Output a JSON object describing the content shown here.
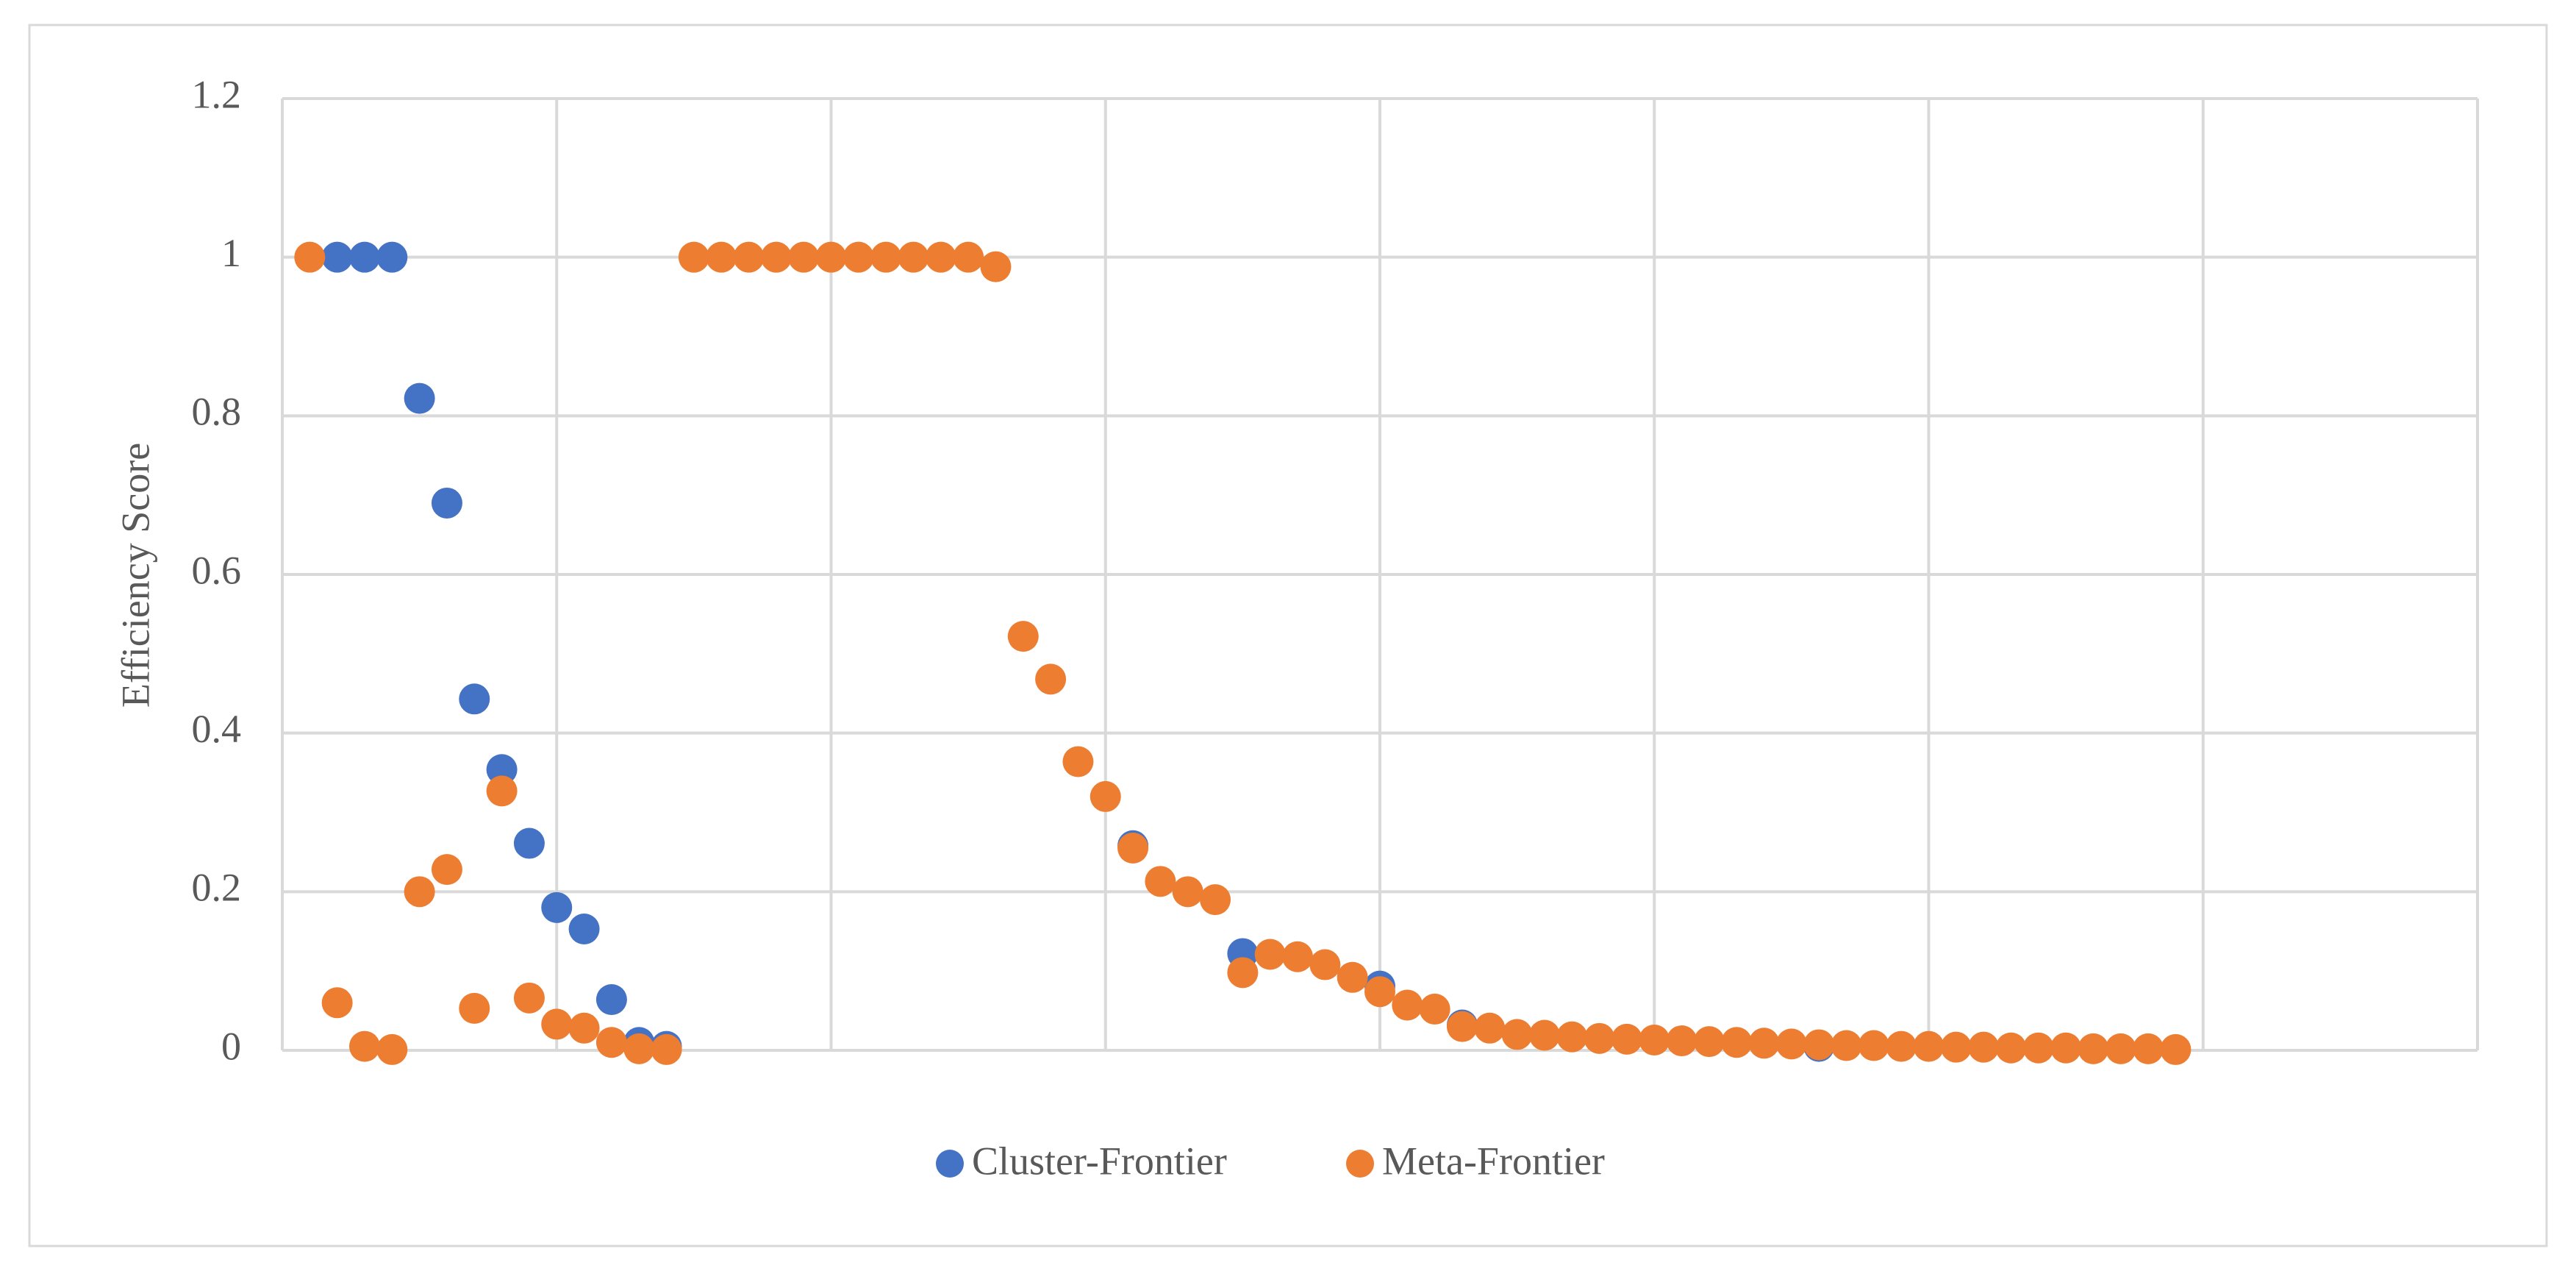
{
  "chart_data": {
    "type": "scatter",
    "y_label": "Efficiency Score",
    "x": [
      1,
      2,
      3,
      4,
      5,
      6,
      7,
      8,
      9,
      10,
      11,
      12,
      13,
      14,
      15,
      16,
      17,
      18,
      19,
      20,
      21,
      22,
      23,
      24,
      25,
      26,
      27,
      28,
      29,
      30,
      31,
      32,
      33,
      34,
      35,
      36,
      37,
      38,
      39,
      40,
      41,
      42,
      43,
      44,
      45,
      46,
      47,
      48,
      49,
      50,
      51,
      52,
      53,
      54,
      55,
      56,
      57,
      58,
      59,
      60,
      61,
      62,
      63,
      64,
      65,
      66,
      67,
      68,
      69
    ],
    "series": [
      {
        "name": "Cluster-Frontier",
        "color": "#4472c4",
        "values": [
          null,
          1,
          1,
          1,
          0.822,
          0.69,
          0.443,
          0.354,
          0.261,
          0.18,
          0.153,
          0.064,
          0.01,
          0.005,
          null,
          null,
          null,
          null,
          null,
          null,
          null,
          null,
          null,
          null,
          null,
          null,
          null,
          null,
          null,
          null,
          0.258,
          null,
          null,
          null,
          0.122,
          null,
          null,
          null,
          null,
          0.081,
          null,
          null,
          0.032,
          null,
          null,
          null,
          null,
          null,
          null,
          null,
          null,
          null,
          null,
          null,
          null,
          0.005,
          null,
          null,
          null,
          null,
          null,
          null,
          null,
          null,
          null,
          null,
          null,
          null,
          null
        ]
      },
      {
        "name": "Meta-Frontier",
        "color": "#ed7d31",
        "values": [
          1,
          0.06,
          0.005,
          0.001,
          0.2,
          0.228,
          0.053,
          0.327,
          0.066,
          0.033,
          0.028,
          0.01,
          0.002,
          0.001,
          1,
          1,
          1,
          1,
          1,
          1,
          1,
          1,
          1,
          1,
          1,
          0.988,
          0.522,
          0.468,
          0.364,
          0.32,
          0.255,
          0.213,
          0.2,
          0.19,
          0.098,
          0.121,
          0.118,
          0.108,
          0.092,
          0.074,
          0.057,
          0.052,
          0.03,
          0.028,
          0.02,
          0.019,
          0.017,
          0.015,
          0.014,
          0.013,
          0.012,
          0.011,
          0.01,
          0.009,
          0.008,
          0.007,
          0.006,
          0.006,
          0.005,
          0.005,
          0.004,
          0.004,
          0.003,
          0.003,
          0.003,
          0.002,
          0.002,
          0.002,
          0.001
        ]
      }
    ],
    "xlim": [
      0,
      80
    ],
    "xticks": [
      0,
      10,
      20,
      30,
      40,
      50,
      60,
      70,
      80
    ],
    "xtick_labels": false,
    "ylim": [
      0,
      1.2
    ],
    "yticks": [
      0,
      0.2,
      0.4,
      0.6,
      0.8,
      1,
      1.2
    ],
    "grid": true,
    "legend": "bottom"
  }
}
